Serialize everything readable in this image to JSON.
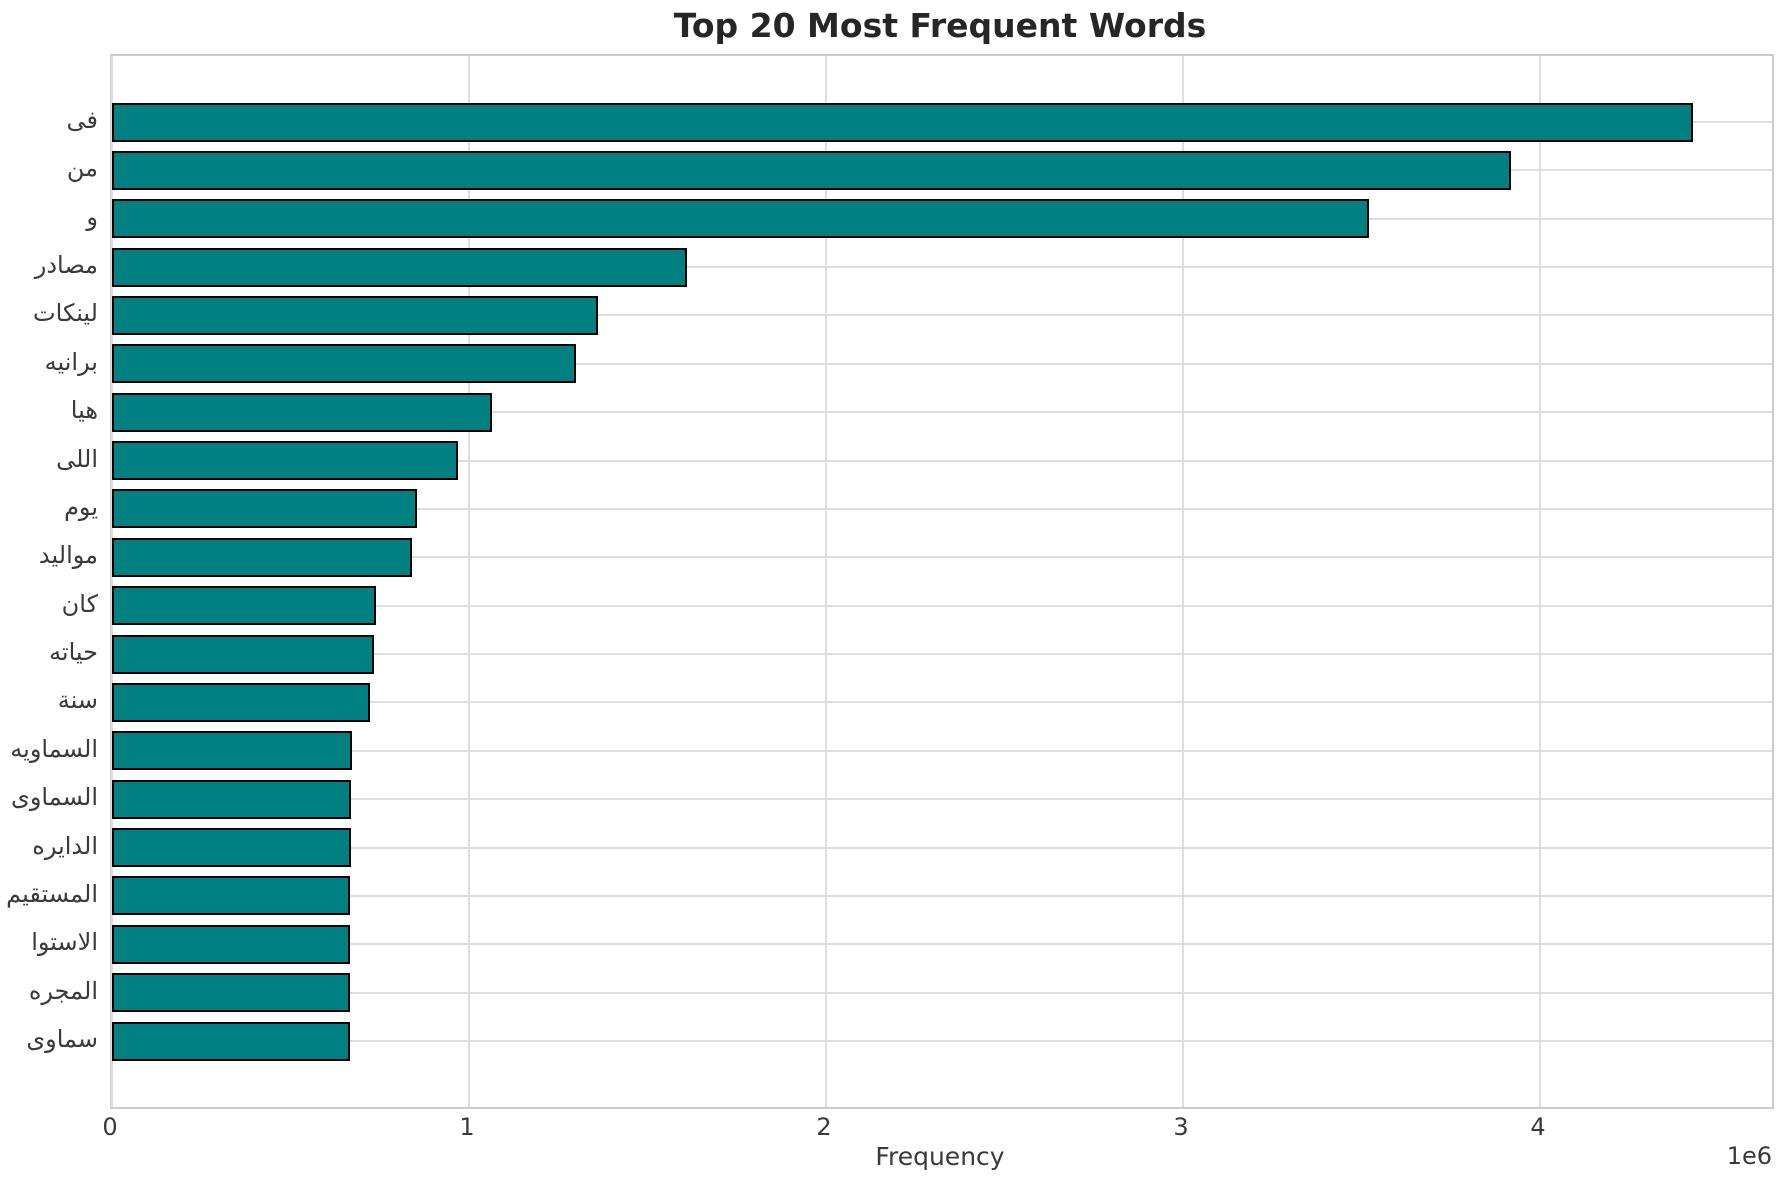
{
  "chart_data": {
    "type": "bar",
    "orientation": "horizontal",
    "title": "Top 20 Most Frequent Words",
    "xlabel": "Frequency",
    "ylabel": "",
    "x_offset_label": "1e6",
    "xlim": [
      0,
      4650000
    ],
    "x_ticks": [
      0,
      1000000,
      2000000,
      3000000,
      4000000
    ],
    "x_tick_labels": [
      "0",
      "1",
      "2",
      "3",
      "4"
    ],
    "grid": true,
    "legend": false,
    "bar_color": "#008080",
    "bar_edge_color": "#000000",
    "categories": [
      "فى",
      "من",
      "و",
      "مصادر",
      "لينكات",
      "برانيه",
      "هيا",
      "اللى",
      "يوم",
      "مواليد",
      "كان",
      "حياته",
      "سنة",
      "السماويه",
      "السماوى",
      "الدايره",
      "المستقيم",
      "الاستوا",
      "المجره",
      "سماوى"
    ],
    "values": [
      4430000,
      3920000,
      3520000,
      1610000,
      1360000,
      1300000,
      1065000,
      970000,
      855000,
      840000,
      740000,
      735000,
      722000,
      671000,
      670000,
      669000,
      668000,
      668000,
      667000,
      667000
    ]
  }
}
